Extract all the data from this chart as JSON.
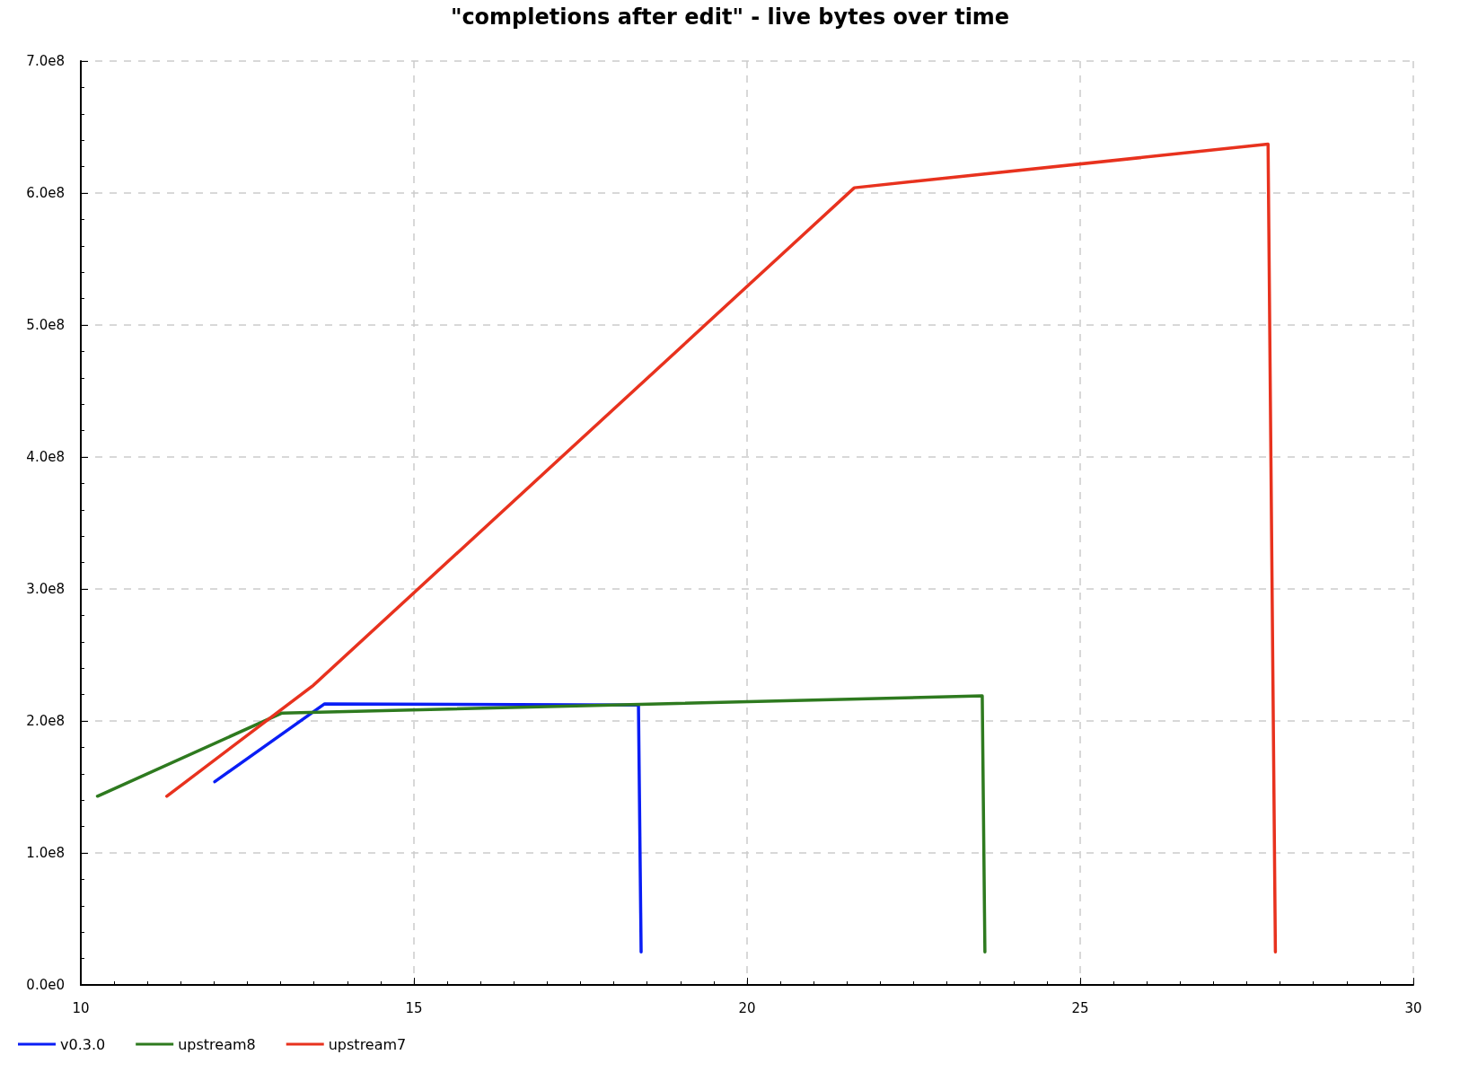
{
  "chart_data": {
    "type": "line",
    "title": "\"completions after edit\" - live bytes over time",
    "series": [
      {
        "name": "v0.3.0",
        "color": "#0a1ef5",
        "x": [
          12.01,
          13.66,
          18.37,
          18.41
        ],
        "values": [
          154000000,
          213000000,
          212000000,
          25000000
        ]
      },
      {
        "name": "upstream8",
        "color": "#2e7a1f",
        "x": [
          10.25,
          13.02,
          23.53,
          23.57
        ],
        "values": [
          143000000,
          206000000,
          219000000,
          25000000
        ]
      },
      {
        "name": "upstream7",
        "color": "#e8321e",
        "x": [
          11.29,
          13.49,
          21.61,
          27.82,
          27.93
        ],
        "values": [
          143000000,
          227000000,
          604000000,
          637000000,
          25000000
        ]
      }
    ],
    "xlim": [
      10,
      30
    ],
    "xticks": [
      10,
      15,
      20,
      25,
      30
    ],
    "ylim": [
      0,
      700000000
    ],
    "yticks": [
      {
        "value": 0,
        "label": "0.0e0"
      },
      {
        "value": 100000000,
        "label": "1.0e8"
      },
      {
        "value": 200000000,
        "label": "2.0e8"
      },
      {
        "value": 300000000,
        "label": "3.0e8"
      },
      {
        "value": 400000000,
        "label": "4.0e8"
      },
      {
        "value": 500000000,
        "label": "5.0e8"
      },
      {
        "value": 600000000,
        "label": "6.0e8"
      },
      {
        "value": 700000000,
        "label": "7.0e8"
      }
    ],
    "grid": true,
    "legend": "bottom left",
    "marker": "none",
    "line_style": "solid"
  }
}
